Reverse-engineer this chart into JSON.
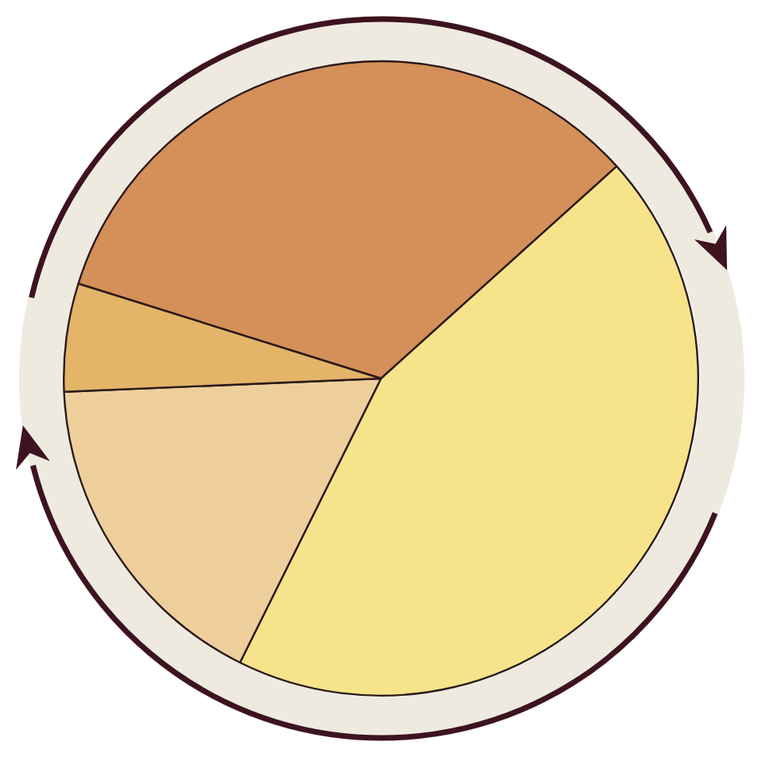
{
  "chart_data": {
    "type": "pie",
    "categories": [
      null,
      null,
      null,
      null
    ],
    "values": [
      33.5,
      44,
      17,
      5.5
    ],
    "colors": [
      "#d58f58",
      "#f6e38a",
      "#eecf9c",
      "#e4b468"
    ],
    "legend": false
  }
}
